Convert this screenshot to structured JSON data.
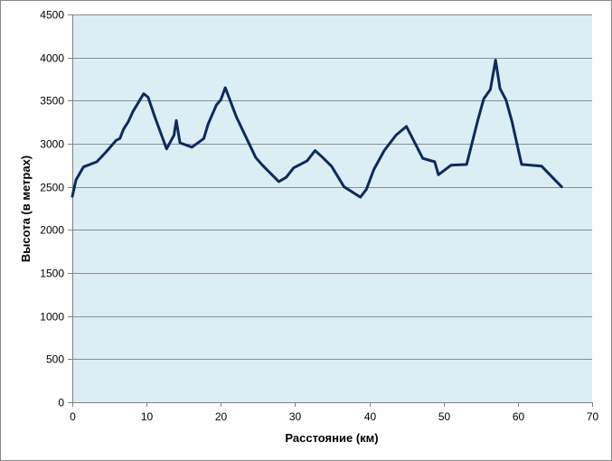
{
  "chart_data": {
    "type": "line",
    "title": "",
    "xlabel": "Расстояние (км)",
    "ylabel": "Высота (в метрах)",
    "xlim": [
      0,
      70
    ],
    "ylim": [
      0,
      4500
    ],
    "xticks": [
      0,
      10,
      20,
      30,
      40,
      50,
      60,
      70
    ],
    "yticks": [
      0,
      500,
      1000,
      1500,
      2000,
      2500,
      3000,
      3500,
      4000,
      4500
    ],
    "grid": "horizontal",
    "legend": "none",
    "plot_background": "#dbeef4",
    "line_color": "#0e2a5c",
    "series": [
      {
        "x": [
          0,
          0.5,
          1.5,
          3.3,
          4.5,
          5.9,
          6.4,
          6.9,
          7.5,
          8.2,
          9.6,
          10.2,
          11.2,
          12.7,
          13.7,
          14.0,
          14.5,
          16.1,
          17.7,
          18.3,
          19.4,
          20.0,
          20.6,
          22.1,
          23.7,
          24.7,
          25.5,
          27.8,
          28.8,
          29.8,
          31.6,
          32.7,
          33.6,
          34.9,
          36.6,
          38.8,
          39.6,
          40.6,
          42.0,
          43.6,
          45.0,
          47.2,
          48.8,
          49.3,
          51.0,
          53.1,
          54.6,
          55.4,
          56.3,
          57.0,
          57.6,
          58.4,
          59.2,
          60.5,
          63.2,
          65.9
        ],
        "y": [
          2390,
          2580,
          2730,
          2790,
          2900,
          3040,
          3060,
          3170,
          3250,
          3380,
          3580,
          3540,
          3290,
          2940,
          3100,
          3270,
          3010,
          2960,
          3060,
          3230,
          3450,
          3510,
          3650,
          3310,
          3020,
          2840,
          2760,
          2560,
          2610,
          2720,
          2800,
          2920,
          2850,
          2740,
          2500,
          2380,
          2470,
          2700,
          2920,
          3100,
          3200,
          2830,
          2790,
          2640,
          2750,
          2760,
          3270,
          3520,
          3630,
          3970,
          3640,
          3510,
          3260,
          2760,
          2740,
          2500
        ]
      }
    ]
  }
}
